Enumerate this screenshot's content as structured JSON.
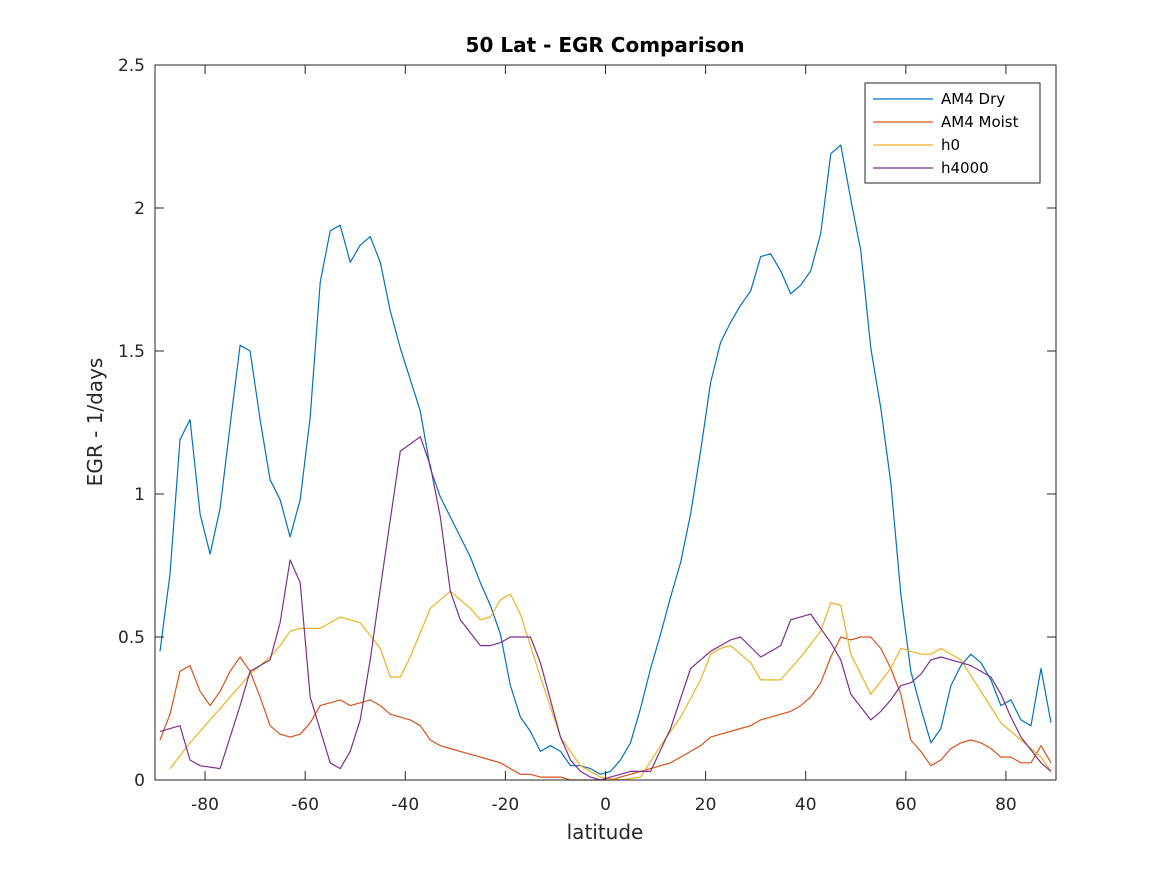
{
  "chart_data": {
    "type": "line",
    "title": "50 Lat - EGR Comparison",
    "xlabel": "latitude",
    "ylabel": "EGR - 1/days",
    "xlim": [
      -90,
      90
    ],
    "ylim": [
      0,
      2.5
    ],
    "xticks": [
      -80,
      -60,
      -40,
      -20,
      0,
      20,
      40,
      60,
      80
    ],
    "yticks": [
      0,
      0.5,
      1,
      1.5,
      2,
      2.5
    ],
    "ytick_labels": [
      "0",
      "0.5",
      "1",
      "1.5",
      "2",
      "2.5"
    ],
    "grid": false,
    "legend_position": "top-right",
    "series": [
      {
        "name": "AM4 Dry",
        "color": "#0072BD",
        "points": [
          [
            -89,
            0.45
          ],
          [
            -87,
            0.72
          ],
          [
            -85,
            1.19
          ],
          [
            -83,
            1.26
          ],
          [
            -81,
            0.93
          ],
          [
            -79,
            0.79
          ],
          [
            -77,
            0.95
          ],
          [
            -75,
            1.24
          ],
          [
            -73,
            1.52
          ],
          [
            -71,
            1.5
          ],
          [
            -69,
            1.26
          ],
          [
            -67,
            1.05
          ],
          [
            -65,
            0.98
          ],
          [
            -63,
            0.85
          ],
          [
            -61,
            0.98
          ],
          [
            -59,
            1.27
          ],
          [
            -57,
            1.74
          ],
          [
            -55,
            1.92
          ],
          [
            -53,
            1.94
          ],
          [
            -51,
            1.81
          ],
          [
            -49,
            1.87
          ],
          [
            -47,
            1.9
          ],
          [
            -45,
            1.81
          ],
          [
            -43,
            1.64
          ],
          [
            -41,
            1.51
          ],
          [
            -39,
            1.4
          ],
          [
            -37,
            1.29
          ],
          [
            -35,
            1.09
          ],
          [
            -33,
            0.99
          ],
          [
            -31,
            0.92
          ],
          [
            -29,
            0.85
          ],
          [
            -27,
            0.78
          ],
          [
            -25,
            0.69
          ],
          [
            -23,
            0.61
          ],
          [
            -21,
            0.51
          ],
          [
            -19,
            0.33
          ],
          [
            -17,
            0.22
          ],
          [
            -15,
            0.17
          ],
          [
            -13,
            0.1
          ],
          [
            -11,
            0.12
          ],
          [
            -9,
            0.1
          ],
          [
            -7,
            0.05
          ],
          [
            -5,
            0.05
          ],
          [
            -3,
            0.04
          ],
          [
            -1,
            0.02
          ],
          [
            1,
            0.03
          ],
          [
            3,
            0.07
          ],
          [
            5,
            0.13
          ],
          [
            7,
            0.25
          ],
          [
            9,
            0.39
          ],
          [
            11,
            0.51
          ],
          [
            13,
            0.64
          ],
          [
            15,
            0.76
          ],
          [
            17,
            0.93
          ],
          [
            19,
            1.15
          ],
          [
            21,
            1.39
          ],
          [
            23,
            1.53
          ],
          [
            25,
            1.6
          ],
          [
            27,
            1.66
          ],
          [
            29,
            1.71
          ],
          [
            31,
            1.83
          ],
          [
            33,
            1.84
          ],
          [
            35,
            1.78
          ],
          [
            37,
            1.7
          ],
          [
            39,
            1.73
          ],
          [
            41,
            1.78
          ],
          [
            43,
            1.91
          ],
          [
            45,
            2.19
          ],
          [
            47,
            2.22
          ],
          [
            49,
            2.03
          ],
          [
            51,
            1.85
          ],
          [
            53,
            1.51
          ],
          [
            55,
            1.3
          ],
          [
            57,
            1.04
          ],
          [
            59,
            0.65
          ],
          [
            61,
            0.38
          ],
          [
            63,
            0.25
          ],
          [
            65,
            0.13
          ],
          [
            67,
            0.18
          ],
          [
            69,
            0.33
          ],
          [
            71,
            0.4
          ],
          [
            73,
            0.44
          ],
          [
            75,
            0.41
          ],
          [
            77,
            0.35
          ],
          [
            79,
            0.26
          ],
          [
            81,
            0.28
          ],
          [
            83,
            0.21
          ],
          [
            85,
            0.19
          ],
          [
            87,
            0.39
          ],
          [
            89,
            0.2
          ]
        ]
      },
      {
        "name": "AM4 Moist",
        "color": "#D95319",
        "points": [
          [
            -89,
            0.14
          ],
          [
            -87,
            0.23
          ],
          [
            -85,
            0.38
          ],
          [
            -83,
            0.4
          ],
          [
            -81,
            0.31
          ],
          [
            -79,
            0.26
          ],
          [
            -77,
            0.31
          ],
          [
            -75,
            0.38
          ],
          [
            -73,
            0.43
          ],
          [
            -71,
            0.38
          ],
          [
            -69,
            0.29
          ],
          [
            -67,
            0.19
          ],
          [
            -65,
            0.16
          ],
          [
            -63,
            0.15
          ],
          [
            -61,
            0.16
          ],
          [
            -59,
            0.2
          ],
          [
            -57,
            0.26
          ],
          [
            -55,
            0.27
          ],
          [
            -53,
            0.28
          ],
          [
            -51,
            0.26
          ],
          [
            -49,
            0.27
          ],
          [
            -47,
            0.28
          ],
          [
            -45,
            0.26
          ],
          [
            -43,
            0.23
          ],
          [
            -41,
            0.22
          ],
          [
            -39,
            0.21
          ],
          [
            -37,
            0.19
          ],
          [
            -35,
            0.14
          ],
          [
            -33,
            0.12
          ],
          [
            -31,
            0.11
          ],
          [
            -29,
            0.1
          ],
          [
            -27,
            0.09
          ],
          [
            -25,
            0.08
          ],
          [
            -23,
            0.07
          ],
          [
            -21,
            0.06
          ],
          [
            -19,
            0.04
          ],
          [
            -17,
            0.02
          ],
          [
            -15,
            0.02
          ],
          [
            -13,
            0.01
          ],
          [
            -11,
            0.01
          ],
          [
            -9,
            0.01
          ],
          [
            -7,
            0.0
          ],
          [
            -5,
            0.0
          ],
          [
            -3,
            0.0
          ],
          [
            -1,
            0.0
          ],
          [
            1,
            0.0
          ],
          [
            3,
            0.01
          ],
          [
            5,
            0.02
          ],
          [
            7,
            0.03
          ],
          [
            9,
            0.04
          ],
          [
            11,
            0.05
          ],
          [
            13,
            0.06
          ],
          [
            15,
            0.08
          ],
          [
            17,
            0.1
          ],
          [
            19,
            0.12
          ],
          [
            21,
            0.15
          ],
          [
            23,
            0.16
          ],
          [
            25,
            0.17
          ],
          [
            27,
            0.18
          ],
          [
            29,
            0.19
          ],
          [
            31,
            0.21
          ],
          [
            33,
            0.22
          ],
          [
            35,
            0.23
          ],
          [
            37,
            0.24
          ],
          [
            39,
            0.26
          ],
          [
            41,
            0.29
          ],
          [
            43,
            0.34
          ],
          [
            45,
            0.43
          ],
          [
            47,
            0.5
          ],
          [
            49,
            0.49
          ],
          [
            51,
            0.5
          ],
          [
            53,
            0.5
          ],
          [
            55,
            0.46
          ],
          [
            57,
            0.39
          ],
          [
            59,
            0.3
          ],
          [
            61,
            0.14
          ],
          [
            63,
            0.1
          ],
          [
            65,
            0.05
          ],
          [
            67,
            0.07
          ],
          [
            69,
            0.11
          ],
          [
            71,
            0.13
          ],
          [
            73,
            0.14
          ],
          [
            75,
            0.13
          ],
          [
            77,
            0.11
          ],
          [
            79,
            0.08
          ],
          [
            81,
            0.08
          ],
          [
            83,
            0.06
          ],
          [
            85,
            0.06
          ],
          [
            87,
            0.12
          ],
          [
            89,
            0.06
          ]
        ]
      },
      {
        "name": "h0",
        "color": "#EDB120",
        "points": [
          [
            -87,
            0.04
          ],
          [
            -83,
            0.13
          ],
          [
            -79,
            0.21
          ],
          [
            -75,
            0.29
          ],
          [
            -71,
            0.37
          ],
          [
            -67,
            0.43
          ],
          [
            -65,
            0.47
          ],
          [
            -63,
            0.52
          ],
          [
            -61,
            0.53
          ],
          [
            -57,
            0.53
          ],
          [
            -53,
            0.57
          ],
          [
            -49,
            0.55
          ],
          [
            -45,
            0.46
          ],
          [
            -43,
            0.36
          ],
          [
            -41,
            0.36
          ],
          [
            -39,
            0.43
          ],
          [
            -35,
            0.6
          ],
          [
            -31,
            0.66
          ],
          [
            -27,
            0.6
          ],
          [
            -25,
            0.56
          ],
          [
            -23,
            0.57
          ],
          [
            -21,
            0.63
          ],
          [
            -19,
            0.65
          ],
          [
            -17,
            0.58
          ],
          [
            -13,
            0.36
          ],
          [
            -9,
            0.15
          ],
          [
            -5,
            0.05
          ],
          [
            -1,
            0.01
          ],
          [
            3,
            0.0
          ],
          [
            7,
            0.01
          ],
          [
            11,
            0.12
          ],
          [
            15,
            0.22
          ],
          [
            19,
            0.35
          ],
          [
            21,
            0.44
          ],
          [
            23,
            0.46
          ],
          [
            25,
            0.47
          ],
          [
            29,
            0.41
          ],
          [
            31,
            0.35
          ],
          [
            35,
            0.35
          ],
          [
            39,
            0.43
          ],
          [
            43,
            0.52
          ],
          [
            45,
            0.62
          ],
          [
            47,
            0.61
          ],
          [
            49,
            0.44
          ],
          [
            53,
            0.3
          ],
          [
            57,
            0.39
          ],
          [
            59,
            0.46
          ],
          [
            63,
            0.44
          ],
          [
            65,
            0.44
          ],
          [
            67,
            0.46
          ],
          [
            71,
            0.42
          ],
          [
            75,
            0.31
          ],
          [
            79,
            0.2
          ],
          [
            83,
            0.14
          ],
          [
            87,
            0.08
          ],
          [
            89,
            0.03
          ]
        ]
      },
      {
        "name": "h4000",
        "color": "#7E2F8E",
        "points": [
          [
            -89,
            0.17
          ],
          [
            -85,
            0.19
          ],
          [
            -83,
            0.07
          ],
          [
            -81,
            0.05
          ],
          [
            -77,
            0.04
          ],
          [
            -73,
            0.26
          ],
          [
            -71,
            0.38
          ],
          [
            -67,
            0.42
          ],
          [
            -65,
            0.55
          ],
          [
            -63,
            0.77
          ],
          [
            -61,
            0.69
          ],
          [
            -59,
            0.29
          ],
          [
            -55,
            0.06
          ],
          [
            -53,
            0.04
          ],
          [
            -51,
            0.1
          ],
          [
            -49,
            0.21
          ],
          [
            -47,
            0.42
          ],
          [
            -45,
            0.67
          ],
          [
            -43,
            0.91
          ],
          [
            -41,
            1.15
          ],
          [
            -37,
            1.2
          ],
          [
            -35,
            1.1
          ],
          [
            -33,
            0.92
          ],
          [
            -31,
            0.66
          ],
          [
            -29,
            0.56
          ],
          [
            -25,
            0.47
          ],
          [
            -23,
            0.47
          ],
          [
            -21,
            0.48
          ],
          [
            -19,
            0.5
          ],
          [
            -15,
            0.5
          ],
          [
            -13,
            0.41
          ],
          [
            -9,
            0.15
          ],
          [
            -7,
            0.07
          ],
          [
            -5,
            0.03
          ],
          [
            -3,
            0.01
          ],
          [
            -1,
            0.0
          ],
          [
            1,
            0.01
          ],
          [
            5,
            0.03
          ],
          [
            9,
            0.03
          ],
          [
            13,
            0.18
          ],
          [
            17,
            0.39
          ],
          [
            21,
            0.45
          ],
          [
            23,
            0.47
          ],
          [
            25,
            0.49
          ],
          [
            27,
            0.5
          ],
          [
            31,
            0.43
          ],
          [
            35,
            0.47
          ],
          [
            37,
            0.56
          ],
          [
            41,
            0.58
          ],
          [
            45,
            0.48
          ],
          [
            47,
            0.42
          ],
          [
            49,
            0.3
          ],
          [
            53,
            0.21
          ],
          [
            55,
            0.24
          ],
          [
            57,
            0.28
          ],
          [
            59,
            0.33
          ],
          [
            61,
            0.34
          ],
          [
            63,
            0.37
          ],
          [
            65,
            0.42
          ],
          [
            67,
            0.43
          ],
          [
            71,
            0.41
          ],
          [
            73,
            0.4
          ],
          [
            77,
            0.36
          ],
          [
            79,
            0.3
          ],
          [
            81,
            0.22
          ],
          [
            83,
            0.15
          ],
          [
            87,
            0.06
          ],
          [
            89,
            0.03
          ]
        ]
      }
    ]
  }
}
